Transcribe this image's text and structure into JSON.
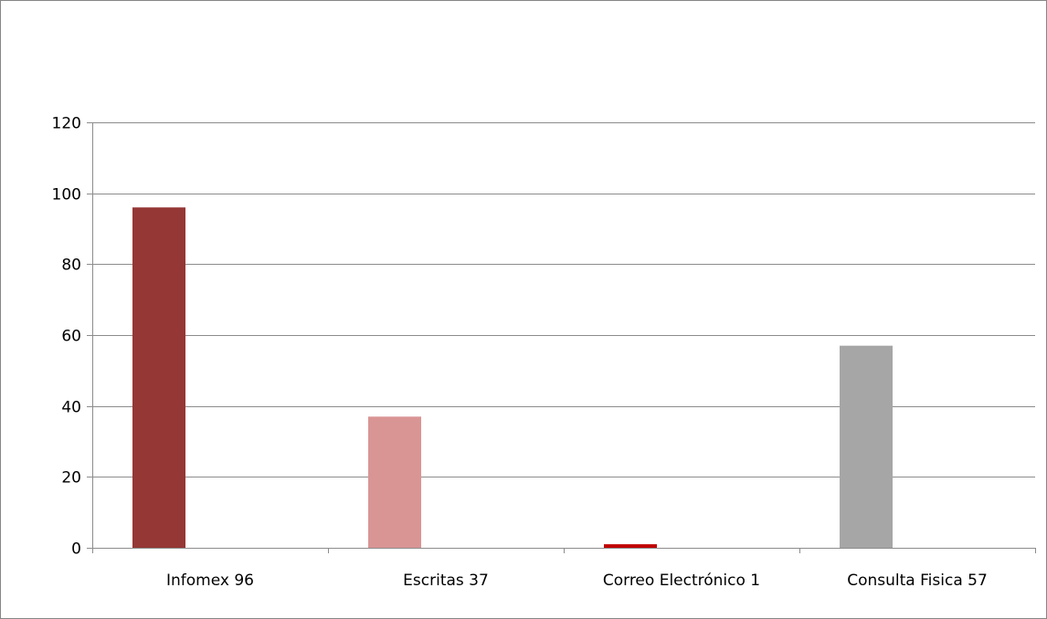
{
  "chart_data": {
    "type": "bar",
    "categories": [
      "Infomex 96",
      "Escritas 37",
      "Correo Electrónico 1",
      "Consulta Fisica 57"
    ],
    "values": [
      96,
      37,
      1,
      57
    ],
    "colors": [
      "#953735",
      "#d99594",
      "#c00000",
      "#a6a6a6"
    ],
    "ylim": [
      0,
      120
    ],
    "yticks": [
      0,
      20,
      40,
      60,
      80,
      100,
      120
    ],
    "grid": true,
    "legend": "none",
    "title": "",
    "xlabel": "",
    "ylabel": ""
  }
}
